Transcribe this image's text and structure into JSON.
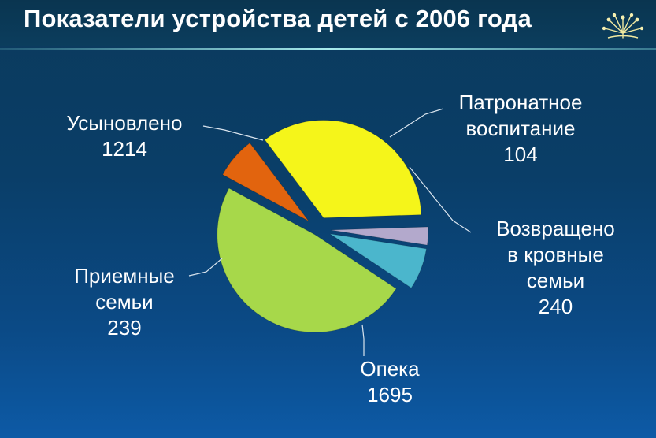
{
  "title": "Показатели устройства детей с 2006 года",
  "logo_icon": "dandelion-icon",
  "colors": {
    "background": "#0b3f6b",
    "accent_line": "#7fd8d8",
    "adopted": "#f5f51a",
    "foster_care": "#b3a9cc",
    "returned": "#4bb6cc",
    "guardianship": "#a7d84a",
    "foster_families": "#e2640e"
  },
  "chart_data": {
    "type": "pie",
    "exploded": true,
    "slices": [
      {
        "label_lines": [
          "Усыновлено",
          "1214"
        ],
        "value": 1214,
        "color": "#f5f51a"
      },
      {
        "label_lines": [
          "Патронатное",
          "воспитание",
          "104"
        ],
        "value": 104,
        "color": "#b3a9cc"
      },
      {
        "label_lines": [
          "Возвращено",
          "в кровные",
          "семьи",
          "240"
        ],
        "value": 240,
        "color": "#4bb6cc"
      },
      {
        "label_lines": [
          "Опека",
          "1695"
        ],
        "value": 1695,
        "color": "#a7d84a"
      },
      {
        "label_lines": [
          "Приемные",
          "семьи",
          "239"
        ],
        "value": 239,
        "color": "#e2640e"
      }
    ]
  }
}
